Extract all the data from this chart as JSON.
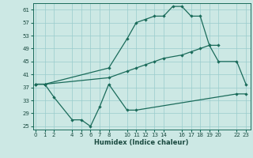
{
  "xlabel": "Humidex (Indice chaleur)",
  "background_color": "#cce8e4",
  "grid_color": "#99cccc",
  "line_color": "#1a6b5a",
  "ylim": [
    24,
    63
  ],
  "xlim": [
    -0.3,
    23.5
  ],
  "yticks": [
    25,
    29,
    33,
    37,
    41,
    45,
    49,
    53,
    57,
    61
  ],
  "xticks": [
    0,
    1,
    2,
    4,
    5,
    6,
    7,
    8,
    10,
    11,
    12,
    13,
    14,
    16,
    17,
    18,
    19,
    20,
    22,
    23
  ],
  "series": [
    {
      "x": [
        0,
        1,
        8,
        10,
        11,
        12,
        13,
        14,
        15,
        16,
        17,
        18,
        19,
        20
      ],
      "y": [
        38,
        38,
        43,
        52,
        57,
        58,
        59,
        59,
        62,
        62,
        59,
        59,
        50,
        50
      ]
    },
    {
      "x": [
        0,
        1,
        8,
        10,
        11,
        12,
        13,
        14,
        16,
        17,
        18,
        19,
        20,
        22,
        23
      ],
      "y": [
        38,
        38,
        40,
        42,
        43,
        44,
        45,
        46,
        47,
        48,
        49,
        50,
        45,
        45,
        38
      ]
    },
    {
      "x": [
        0,
        1,
        2,
        4,
        5,
        6,
        7,
        8,
        10,
        11,
        22,
        23
      ],
      "y": [
        38,
        38,
        34,
        27,
        27,
        25,
        31,
        38,
        30,
        30,
        35,
        35
      ]
    }
  ]
}
